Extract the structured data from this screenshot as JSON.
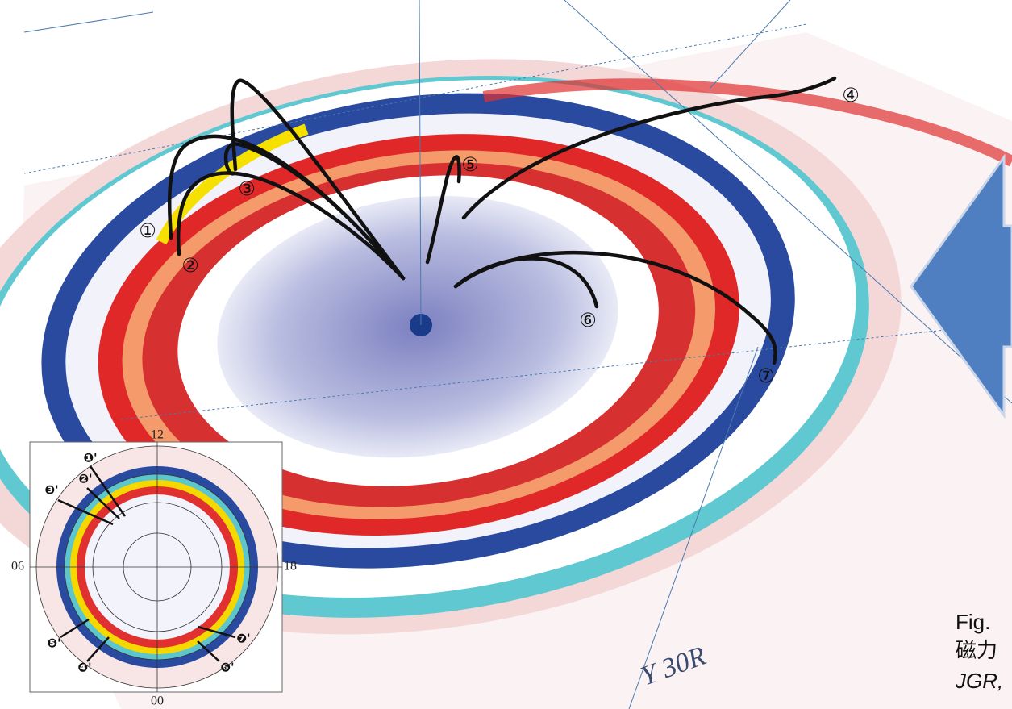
{
  "field_lines": [
    {
      "label": "①"
    },
    {
      "label": "②"
    },
    {
      "label": "③"
    },
    {
      "label": "④"
    },
    {
      "label": "⑤"
    },
    {
      "label": "⑥"
    },
    {
      "label": "⑦"
    }
  ],
  "inset": {
    "hours": {
      "top": "12",
      "left": "06",
      "right": "18",
      "bottom": "00"
    },
    "labels": [
      "❶'",
      "❷'",
      "❸'",
      "❹'",
      "❺'",
      "❻'",
      "❼'"
    ]
  },
  "axis_label": "Y  30R",
  "caption": {
    "line1": "Fig.",
    "line2": "磁力",
    "line3": "JGR,"
  }
}
